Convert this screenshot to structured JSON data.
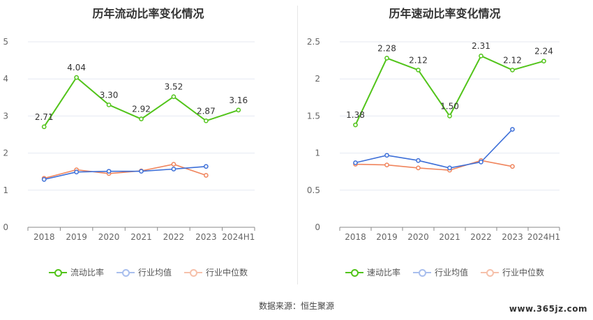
{
  "chart_data": [
    {
      "type": "line",
      "title": "历年流动比率变化情况",
      "categories": [
        "2018",
        "2019",
        "2020",
        "2021",
        "2022",
        "2023",
        "2024H1"
      ],
      "ylim": [
        0,
        5
      ],
      "yticks": [
        "0",
        "1",
        "2",
        "3",
        "4",
        "5"
      ],
      "grid": true,
      "legend_position": "bottom",
      "series": [
        {
          "name": "流动比率",
          "color": "#52c41a",
          "values": [
            2.71,
            4.04,
            3.3,
            2.92,
            3.52,
            2.87,
            3.16
          ],
          "labels": [
            "2.71",
            "4.04",
            "3.30",
            "2.92",
            "3.52",
            "2.87",
            "3.16"
          ]
        },
        {
          "name": "行业均值",
          "color": "#3d6fd8",
          "values": [
            1.29,
            1.49,
            1.51,
            1.51,
            1.57,
            1.64,
            null
          ]
        },
        {
          "name": "行业中位数",
          "color": "#f0845c",
          "values": [
            1.32,
            1.55,
            1.45,
            1.52,
            1.7,
            1.4,
            null
          ]
        }
      ]
    },
    {
      "type": "line",
      "title": "历年速动比率变化情况",
      "categories": [
        "2018",
        "2019",
        "2020",
        "2021",
        "2022",
        "2023",
        "2024H1"
      ],
      "ylim": [
        0,
        2.5
      ],
      "yticks": [
        "0",
        "0.5",
        "1",
        "1.5",
        "2",
        "2.5"
      ],
      "grid": true,
      "legend_position": "bottom",
      "series": [
        {
          "name": "速动比率",
          "color": "#52c41a",
          "values": [
            1.38,
            2.28,
            2.12,
            1.5,
            2.31,
            2.12,
            2.24
          ],
          "labels": [
            "1.38",
            "2.28",
            "2.12",
            "1.50",
            "2.31",
            "2.12",
            "2.24"
          ]
        },
        {
          "name": "行业均值",
          "color": "#3d6fd8",
          "values": [
            0.87,
            0.97,
            0.9,
            0.8,
            0.88,
            1.32,
            null
          ]
        },
        {
          "name": "行业中位数",
          "color": "#f0845c",
          "values": [
            0.85,
            0.84,
            0.8,
            0.77,
            0.9,
            0.82,
            null
          ]
        }
      ]
    }
  ],
  "footer": {
    "source": "数据来源：恒生聚源",
    "watermark": "www.365jz.com"
  }
}
